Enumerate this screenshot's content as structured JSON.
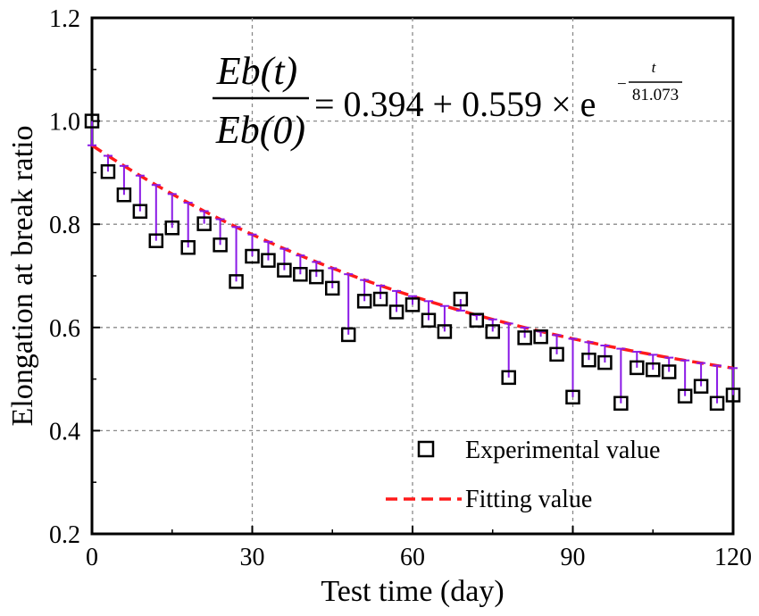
{
  "chart_data": {
    "type": "scatter",
    "title": "",
    "xlabel": "Test time (day)",
    "ylabel": "Elongation at break ratio",
    "xlim": [
      0,
      120
    ],
    "ylim": [
      0.2,
      1.2
    ],
    "xticks": [
      "0",
      "30",
      "60",
      "90",
      "120"
    ],
    "yticks": [
      "0.2",
      "0.4",
      "0.6",
      "0.8",
      "1.0",
      "1.2"
    ],
    "grid": true,
    "legend_position": "bottom-right",
    "legend": {
      "experimental": "Experimental value",
      "fitting": "Fitting value"
    },
    "equation": {
      "lhs_numerator": "Eb(t)",
      "lhs_denominator": "Eb(0)",
      "rhs_main": "= 0.394 + 0.559 × e",
      "exp_sign": "−",
      "exp_numerator": "t",
      "exp_denominator": "81.073"
    },
    "fit": {
      "a": 0.394,
      "b": 0.559,
      "tau": 81.073
    },
    "series": [
      {
        "name": "Experimental value",
        "x": [
          0,
          3,
          6,
          9,
          12,
          15,
          18,
          21,
          24,
          27,
          30,
          33,
          36,
          39,
          42,
          45,
          48,
          51,
          54,
          57,
          60,
          63,
          66,
          69,
          72,
          75,
          78,
          81,
          84,
          87,
          90,
          93,
          96,
          99,
          102,
          105,
          108,
          111,
          114,
          117,
          120
        ],
        "y": [
          1.0,
          0.902,
          0.857,
          0.825,
          0.768,
          0.793,
          0.755,
          0.801,
          0.76,
          0.689,
          0.738,
          0.73,
          0.711,
          0.703,
          0.698,
          0.676,
          0.586,
          0.651,
          0.655,
          0.63,
          0.644,
          0.614,
          0.592,
          0.655,
          0.614,
          0.592,
          0.503,
          0.58,
          0.582,
          0.548,
          0.465,
          0.537,
          0.532,
          0.453,
          0.522,
          0.518,
          0.514,
          0.467,
          0.486,
          0.453,
          0.469
        ]
      }
    ]
  }
}
